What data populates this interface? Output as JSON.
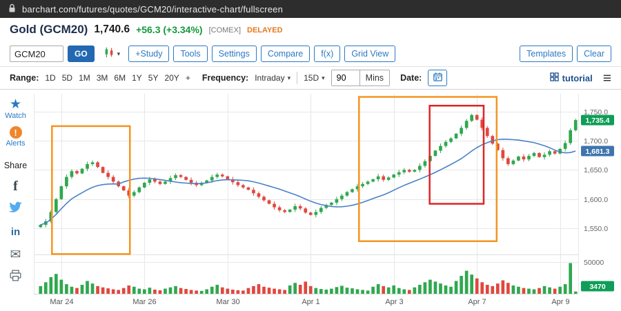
{
  "browser": {
    "url": "barchart.com/futures/quotes/GCM20/interactive-chart/fullscreen"
  },
  "header": {
    "title": "Gold (GCM20)",
    "price": "1,740.6",
    "change": "+56.3 (+3.34%)",
    "exchange": "[COMEX]",
    "delayed": "DELAYED"
  },
  "toolbar": {
    "symbol_value": "GCM20",
    "go_label": "GO",
    "buttons": [
      "+Study",
      "Tools",
      "Settings",
      "Compare",
      "f(x)",
      "Grid View"
    ],
    "templates_label": "Templates",
    "clear_label": "Clear"
  },
  "controls": {
    "range_label": "Range:",
    "ranges": [
      "1D",
      "5D",
      "1M",
      "3M",
      "6M",
      "1Y",
      "5Y",
      "20Y",
      "+"
    ],
    "frequency_label": "Frequency:",
    "frequency_value": "Intraday",
    "period_value": "15D",
    "interval_value": "90",
    "interval_unit": "Mins",
    "date_label": "Date:",
    "tutorial_label": "tutorial"
  },
  "sidebar": {
    "watch_label": "Watch",
    "alerts_label": "Alerts",
    "share_label": "Share"
  },
  "icons": {
    "star": "★",
    "alert": "!",
    "facebook": "f",
    "linkedin": "in",
    "email": "✉",
    "caret": "▾",
    "hamburger": "≡"
  },
  "chart_data": {
    "type": "candlestick",
    "symbol": "GCM20",
    "frequency": "Intraday 90 Mins, 15D",
    "price_range": [
      1510,
      1778
    ],
    "volume_range": [
      0,
      55000
    ],
    "y_ticks": [
      {
        "value": 1750,
        "label": "1,750.0"
      },
      {
        "value": 1700,
        "label": "1,700.0"
      },
      {
        "value": 1650,
        "label": "1,650.0"
      },
      {
        "value": 1600,
        "label": "1,600.0"
      },
      {
        "value": 1550,
        "label": "1,550.0"
      }
    ],
    "volume_tick": {
      "value": 50000,
      "label": "50000"
    },
    "x_labels": [
      {
        "bar": 4,
        "label": "Mar 24"
      },
      {
        "bar": 20,
        "label": "Mar 26"
      },
      {
        "bar": 36,
        "label": "Mar 30"
      },
      {
        "bar": 52,
        "label": "Apr 1"
      },
      {
        "bar": 68,
        "label": "Apr 3"
      },
      {
        "bar": 84,
        "label": "Apr 7"
      },
      {
        "bar": 100,
        "label": "Apr 9"
      }
    ],
    "last_price_badge": {
      "label": "1,735.4",
      "color": "#0f9d58"
    },
    "ma_badge": {
      "label": "1,681.3",
      "color": "#3f74ad"
    },
    "volume_badge": {
      "label": "3470",
      "color": "#0f9d58"
    },
    "ma_window": 16,
    "closes": [
      1556,
      1562,
      1578,
      1600,
      1622,
      1638,
      1648,
      1644,
      1652,
      1660,
      1663,
      1655,
      1645,
      1638,
      1630,
      1622,
      1615,
      1606,
      1612,
      1620,
      1628,
      1634,
      1630,
      1626,
      1630,
      1636,
      1641,
      1638,
      1633,
      1628,
      1624,
      1628,
      1632,
      1638,
      1642,
      1639,
      1634,
      1629,
      1624,
      1620,
      1616,
      1610,
      1604,
      1598,
      1592,
      1586,
      1581,
      1578,
      1582,
      1588,
      1584,
      1577,
      1573,
      1578,
      1585,
      1590,
      1594,
      1600,
      1606,
      1612,
      1617,
      1622,
      1626,
      1630,
      1634,
      1639,
      1633,
      1637,
      1642,
      1646,
      1650,
      1647,
      1650,
      1657,
      1665,
      1674,
      1683,
      1691,
      1698,
      1704,
      1712,
      1722,
      1734,
      1744,
      1736,
      1722,
      1708,
      1695,
      1684,
      1670,
      1660,
      1666,
      1673,
      1668,
      1674,
      1679,
      1672,
      1676,
      1682,
      1678,
      1686,
      1696,
      1718,
      1735.4
    ],
    "volumes": [
      12000,
      18000,
      26000,
      31000,
      22000,
      15000,
      11000,
      9000,
      14000,
      20000,
      16000,
      12000,
      10000,
      8500,
      7000,
      6000,
      9000,
      13000,
      11000,
      8000,
      7000,
      9500,
      6500,
      5500,
      8000,
      10000,
      12000,
      9000,
      7500,
      6000,
      5000,
      4500,
      7000,
      11000,
      14000,
      10000,
      8000,
      6500,
      5500,
      5000,
      9000,
      12000,
      15000,
      11000,
      9500,
      8000,
      7000,
      6000,
      13000,
      17000,
      14000,
      19000,
      12000,
      9000,
      7500,
      6500,
      8000,
      10500,
      12500,
      9500,
      8500,
      7000,
      6000,
      5000,
      11000,
      15000,
      12000,
      10000,
      13000,
      9000,
      7000,
      6000,
      10000,
      14000,
      18000,
      22000,
      19000,
      16000,
      13000,
      11000,
      20000,
      28000,
      36000,
      30000,
      24000,
      18000,
      14000,
      12000,
      16000,
      21000,
      17000,
      13000,
      11000,
      9000,
      8000,
      7000,
      9000,
      12000,
      10000,
      8000,
      11000,
      15000,
      48000,
      3470
    ],
    "annotations": [
      {
        "name": "orange-highlight-1",
        "x0_bar": 2.2,
        "x1_bar": 17.2,
        "y0_price": 1725,
        "y1_price": 1506,
        "color": "#f5941f"
      },
      {
        "name": "orange-highlight-2",
        "x0_bar": 61.3,
        "x1_bar": 87.8,
        "y0_price": 1775,
        "y1_price": 1528,
        "color": "#f5941f"
      },
      {
        "name": "red-highlight",
        "x0_bar": 74.9,
        "x1_bar": 85.3,
        "y0_price": 1760,
        "y1_price": 1592,
        "color": "#e02424"
      }
    ],
    "colors": {
      "up": "#2fa84f",
      "down": "#e0483e",
      "line": "#4a80c5",
      "grid": "#e7e7e7"
    }
  }
}
